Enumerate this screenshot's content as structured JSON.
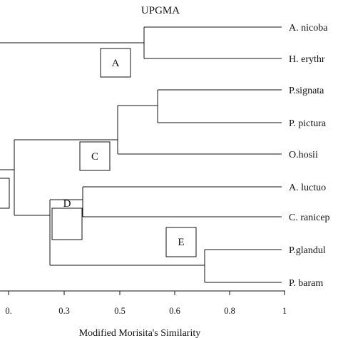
{
  "title": "UPGMA",
  "leaves": [
    {
      "id": "a_nicobar",
      "label": "A. nicoba"
    },
    {
      "id": "h_erythr",
      "label": "H. erythr"
    },
    {
      "id": "p_signata",
      "label": "P.signata"
    },
    {
      "id": "p_pictura",
      "label": "P. pictura"
    },
    {
      "id": "o_hosii",
      "label": "O.hosii"
    },
    {
      "id": "a_luctuo",
      "label": "A. luctuo"
    },
    {
      "id": "c_ranicep",
      "label": "C. ranicep"
    },
    {
      "id": "p_glandul",
      "label": "P.glandul"
    },
    {
      "id": "p_baram",
      "label": "P. baram"
    }
  ],
  "clusters": [
    "A",
    "C",
    "D",
    "E"
  ],
  "axis": {
    "ticks": [
      "0.",
      "0.3",
      "0.5",
      "0.6",
      "0.8",
      "1"
    ],
    "title": "Modified Morisita's Similarity"
  }
}
